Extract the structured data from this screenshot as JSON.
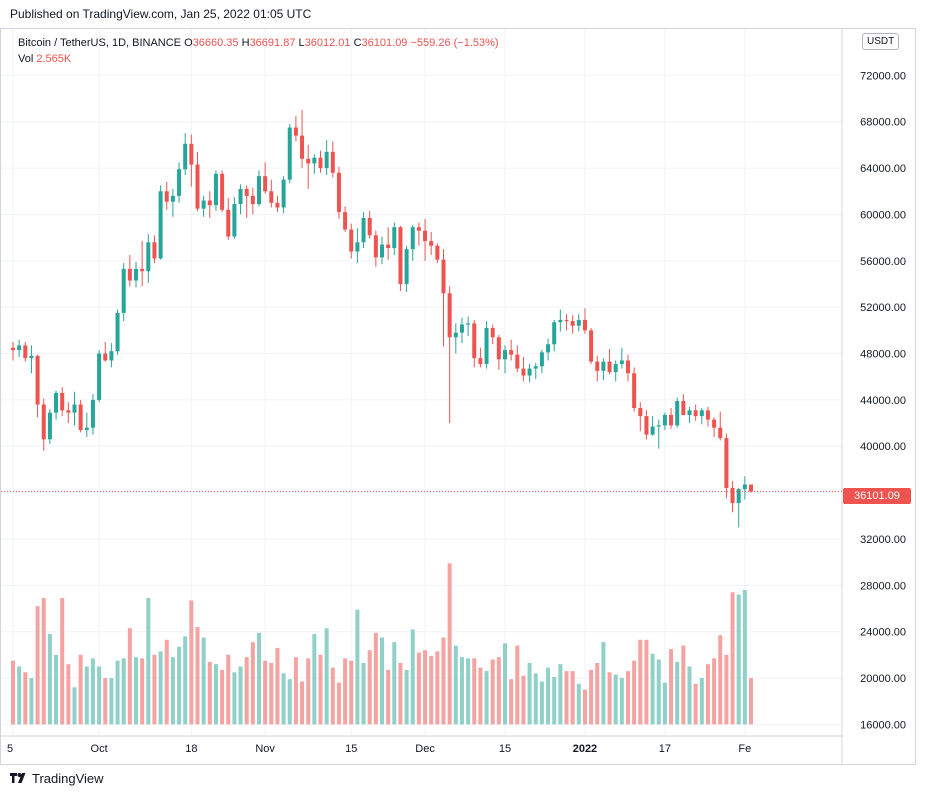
{
  "published": "Published on TradingView.com, Jan 25, 2022 01:05 UTC",
  "footer": {
    "brand": "TradingView"
  },
  "currency": "USDT",
  "legend": {
    "symbol": "Bitcoin / TetherUS, 1D, BINANCE",
    "o_label": "O",
    "o": "36660.35",
    "h_label": "H",
    "h": "36691.87",
    "l_label": "L",
    "l": "36012.01",
    "c_label": "C",
    "c": "36101.09",
    "change": "−559.26 (−1.53%)",
    "vol_label": "Vol",
    "vol": "2.565K"
  },
  "last_price_label": "36101.09",
  "colors": {
    "up": "#26a69a",
    "down": "#ef5350",
    "up_vol": "#8fd0c8",
    "down_vol": "#f5a3a1",
    "grid": "#f0f3fa",
    "text": "#131722"
  },
  "chart_data": {
    "type": "candlestick",
    "title": "Bitcoin / TetherUS, 1D, BINANCE",
    "y_axis": {
      "min": 15000,
      "max": 76000,
      "ticks": [
        "72000.00",
        "68000.00",
        "64000.00",
        "60000.00",
        "56000.00",
        "52000.00",
        "48000.00",
        "44000.00",
        "40000.00",
        "36000.00",
        "32000.00",
        "28000.00",
        "24000.00",
        "20000.00",
        "16000.00"
      ],
      "tick_values": [
        72000,
        68000,
        64000,
        60000,
        56000,
        52000,
        48000,
        44000,
        40000,
        36000,
        32000,
        28000,
        24000,
        20000,
        16000
      ]
    },
    "x_axis": {
      "labels": [
        "5",
        "Oct",
        "18",
        "Nov",
        "15",
        "Dec",
        "15",
        "2022",
        "17",
        "Fe"
      ],
      "label_index": [
        0,
        14,
        29,
        41,
        55,
        67,
        80,
        93,
        106,
        119
      ]
    },
    "last_price": 36101.09,
    "volume_scale": {
      "baseline": 16000,
      "max_value": 31000
    },
    "candles": [
      [
        48500,
        49000,
        47400,
        48300
      ],
      [
        48300,
        49200,
        47700,
        48700
      ],
      [
        48700,
        49000,
        47300,
        47600
      ],
      [
        47600,
        48700,
        46300,
        47800
      ],
      [
        47800,
        47900,
        42500,
        43600
      ],
      [
        43600,
        44100,
        39600,
        40600
      ],
      [
        40600,
        43200,
        40200,
        42900
      ],
      [
        42900,
        44800,
        42300,
        44600
      ],
      [
        44600,
        45100,
        42600,
        43100
      ],
      [
        43100,
        43800,
        42000,
        42900
      ],
      [
        42900,
        44700,
        41800,
        43600
      ],
      [
        43600,
        44000,
        41200,
        41400
      ],
      [
        41400,
        42900,
        40800,
        41600
      ],
      [
        41600,
        44500,
        41000,
        44000
      ],
      [
        44000,
        48300,
        43800,
        48000
      ],
      [
        48000,
        49000,
        47300,
        47400
      ],
      [
        47400,
        48900,
        46800,
        48200
      ],
      [
        48200,
        51800,
        47900,
        51500
      ],
      [
        51500,
        55800,
        50800,
        55300
      ],
      [
        55300,
        56500,
        53800,
        54300
      ],
      [
        54300,
        55900,
        53700,
        55300
      ],
      [
        55300,
        57700,
        53800,
        55100
      ],
      [
        55100,
        58300,
        54100,
        57600
      ],
      [
        57600,
        58200,
        55800,
        56200
      ],
      [
        56200,
        62500,
        56100,
        62000
      ],
      [
        62000,
        62800,
        60400,
        61100
      ],
      [
        61100,
        62200,
        59800,
        61600
      ],
      [
        61600,
        64500,
        61000,
        63900
      ],
      [
        63900,
        67000,
        63400,
        66100
      ],
      [
        66100,
        66900,
        62400,
        64300
      ],
      [
        64300,
        65400,
        60300,
        60500
      ],
      [
        60500,
        61600,
        59800,
        61200
      ],
      [
        61200,
        62000,
        59700,
        60800
      ],
      [
        60800,
        63800,
        60300,
        63500
      ],
      [
        63500,
        63800,
        60200,
        60400
      ],
      [
        60400,
        61400,
        57800,
        58100
      ],
      [
        58100,
        61500,
        57900,
        60900
      ],
      [
        60900,
        62600,
        60000,
        62200
      ],
      [
        62200,
        62500,
        59700,
        61600
      ],
      [
        61600,
        62300,
        60000,
        60900
      ],
      [
        60900,
        63800,
        60700,
        63300
      ],
      [
        63300,
        64500,
        61800,
        62000
      ],
      [
        62000,
        63000,
        60600,
        61000
      ],
      [
        61000,
        61600,
        60200,
        60600
      ],
      [
        60600,
        63300,
        60100,
        63000
      ],
      [
        63000,
        67800,
        62700,
        67500
      ],
      [
        67500,
        68500,
        66300,
        66800
      ],
      [
        66800,
        69000,
        64000,
        64800
      ],
      [
        64800,
        66000,
        62200,
        64400
      ],
      [
        64400,
        65200,
        63500,
        64900
      ],
      [
        64900,
        65500,
        63600,
        64000
      ],
      [
        64000,
        66400,
        63400,
        65400
      ],
      [
        65400,
        66300,
        63200,
        63600
      ],
      [
        63600,
        64100,
        59600,
        60200
      ],
      [
        60200,
        60700,
        58500,
        58700
      ],
      [
        58700,
        59200,
        56200,
        56800
      ],
      [
        56800,
        58800,
        55800,
        57600
      ],
      [
        57600,
        60200,
        57100,
        59700
      ],
      [
        59700,
        60300,
        57900,
        58200
      ],
      [
        58200,
        58600,
        55500,
        56300
      ],
      [
        56300,
        58100,
        55700,
        57400
      ],
      [
        57400,
        58900,
        56100,
        57100
      ],
      [
        57100,
        59300,
        56500,
        58900
      ],
      [
        58900,
        59000,
        53400,
        54000
      ],
      [
        54000,
        57300,
        53300,
        57000
      ],
      [
        57000,
        59100,
        56000,
        58900
      ],
      [
        58900,
        59300,
        57300,
        58600
      ],
      [
        58600,
        59600,
        56000,
        57700
      ],
      [
        57700,
        58500,
        56500,
        57300
      ],
      [
        57300,
        57500,
        55800,
        56100
      ],
      [
        56100,
        57000,
        48600,
        53200
      ],
      [
        53200,
        53800,
        42000,
        49400
      ],
      [
        49400,
        50600,
        48000,
        49800
      ],
      [
        49800,
        51100,
        48900,
        50500
      ],
      [
        50500,
        51200,
        49500,
        50600
      ],
      [
        50600,
        50900,
        46800,
        47600
      ],
      [
        47600,
        48500,
        46800,
        47100
      ],
      [
        47100,
        50800,
        46700,
        50200
      ],
      [
        50200,
        50500,
        48800,
        49400
      ],
      [
        49400,
        49600,
        46600,
        47500
      ],
      [
        47500,
        48700,
        46300,
        48300
      ],
      [
        48300,
        49200,
        47400,
        47900
      ],
      [
        47900,
        48700,
        46400,
        46700
      ],
      [
        46700,
        47700,
        45600,
        46100
      ],
      [
        46100,
        47100,
        45500,
        46700
      ],
      [
        46700,
        47200,
        45800,
        46900
      ],
      [
        46900,
        48300,
        46300,
        48100
      ],
      [
        48100,
        49300,
        47400,
        48800
      ],
      [
        48800,
        50900,
        48200,
        50700
      ],
      [
        50700,
        51800,
        49900,
        50900
      ],
      [
        50900,
        51400,
        50000,
        50800
      ],
      [
        50800,
        51300,
        49700,
        50400
      ],
      [
        50400,
        51400,
        49900,
        50900
      ],
      [
        50900,
        51900,
        49700,
        50000
      ],
      [
        50000,
        50200,
        47100,
        47300
      ],
      [
        47300,
        47800,
        45600,
        46500
      ],
      [
        46500,
        47600,
        45700,
        47300
      ],
      [
        47300,
        48400,
        46200,
        46400
      ],
      [
        46400,
        47400,
        45600,
        47100
      ],
      [
        47100,
        48500,
        46700,
        47400
      ],
      [
        47400,
        47900,
        45600,
        46300
      ],
      [
        46300,
        46800,
        43000,
        43300
      ],
      [
        43300,
        43800,
        41300,
        42600
      ],
      [
        42600,
        43100,
        40600,
        41000
      ],
      [
        41000,
        42600,
        40900,
        41700
      ],
      [
        41700,
        42300,
        39800,
        41800
      ],
      [
        41800,
        42900,
        41400,
        42700
      ],
      [
        42700,
        43300,
        41500,
        41800
      ],
      [
        41800,
        44200,
        41600,
        43900
      ],
      [
        43900,
        44500,
        42700,
        42700
      ],
      [
        42700,
        43400,
        42000,
        43100
      ],
      [
        43100,
        43600,
        42200,
        42600
      ],
      [
        42600,
        43300,
        41900,
        43100
      ],
      [
        43100,
        43400,
        41700,
        42300
      ],
      [
        42300,
        42500,
        40800,
        41600
      ],
      [
        41600,
        43000,
        40500,
        40700
      ],
      [
        40700,
        41100,
        35500,
        36400
      ],
      [
        36400,
        37000,
        34300,
        35100
      ],
      [
        35100,
        36400,
        33000,
        36300
      ],
      [
        36300,
        37400,
        35400,
        36700
      ],
      [
        36700,
        36700,
        36000,
        36100
      ]
    ],
    "volumes": [
      21500,
      21000,
      20500,
      20000,
      26200,
      26900,
      23800,
      22000,
      26900,
      21200,
      19200,
      22000,
      21000,
      21700,
      21000,
      20000,
      20000,
      21500,
      21700,
      24300,
      21800,
      21700,
      26900,
      22000,
      22300,
      23300,
      21800,
      22700,
      23600,
      26700,
      24400,
      23500,
      21400,
      21200,
      20700,
      22000,
      20500,
      21000,
      21800,
      23100,
      23900,
      21500,
      21300,
      22600,
      20400,
      19900,
      21800,
      19700,
      21700,
      23800,
      22000,
      24300,
      20900,
      19600,
      21700,
      21500,
      25900,
      21300,
      22400,
      23900,
      23500,
      20700,
      23100,
      21300,
      20700,
      24200,
      22200,
      22400,
      21900,
      22300,
      23500,
      29900,
      22800,
      21800,
      21700,
      21700,
      20900,
      20600,
      21600,
      21800,
      23000,
      19900,
      22800,
      20200,
      21300,
      20400,
      19700,
      20900,
      20100,
      21200,
      20600,
      20600,
      19500,
      19000,
      20700,
      21300,
      23100,
      20500,
      20300,
      20000,
      20600,
      21500,
      23300,
      23300,
      22100,
      21600,
      19600,
      22500,
      21400,
      22800,
      21000,
      19500,
      20000,
      21200,
      21700,
      23700,
      22000,
      27400,
      27200,
      27600,
      20000
    ]
  }
}
